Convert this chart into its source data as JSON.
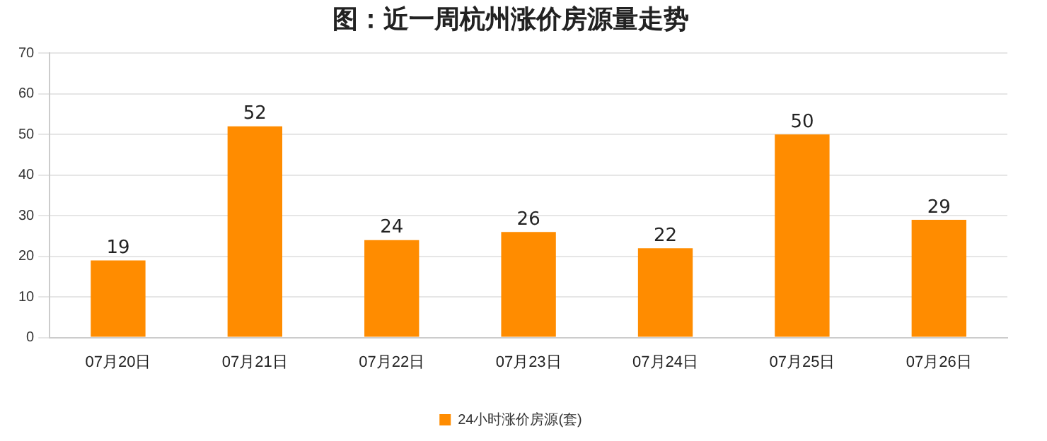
{
  "chart_data": {
    "type": "bar",
    "title": "图：近一周杭州涨价房源量走势",
    "categories": [
      "07月20日",
      "07月21日",
      "07月22日",
      "07月23日",
      "07月24日",
      "07月25日",
      "07月26日"
    ],
    "series": [
      {
        "name": "24小时涨价房源(套)",
        "color": "#ff8c00",
        "values": [
          19,
          52,
          24,
          26,
          22,
          50,
          29
        ]
      }
    ],
    "ylim": [
      0,
      70
    ],
    "yticks": [
      0,
      10,
      20,
      30,
      40,
      50,
      60,
      70
    ],
    "grid": "y",
    "legend": "bottom",
    "data_labels": true
  }
}
